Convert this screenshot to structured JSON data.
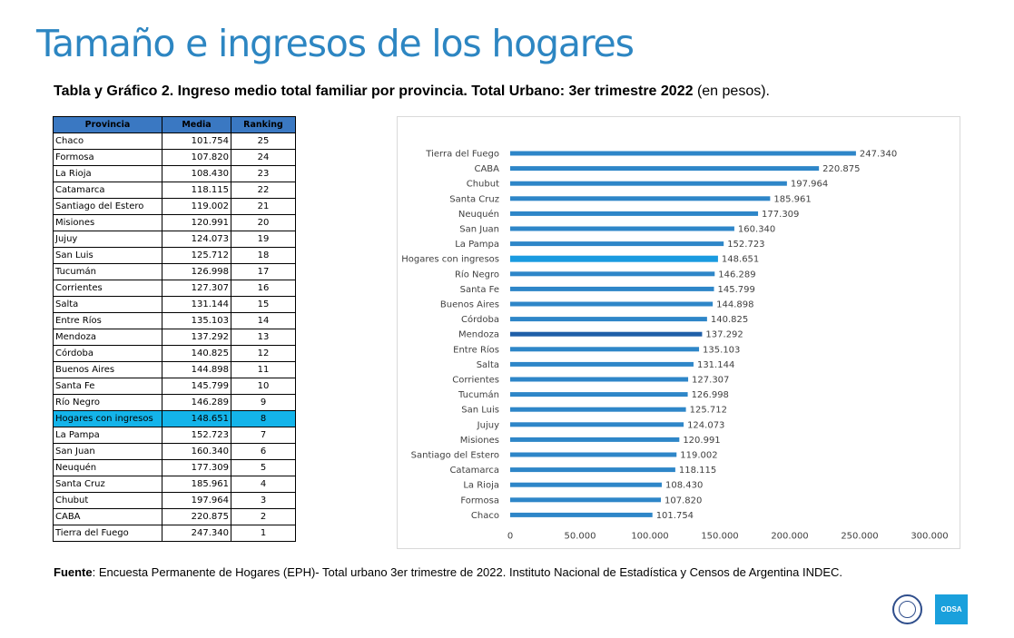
{
  "page": {
    "title": "Tamaño e ingresos de los hogares",
    "subtitle_bold": "Tabla y Gráfico 2. Ingreso medio total familiar por provincia. Total Urbano: 3er trimestre 2022",
    "subtitle_normal": "(en pesos).",
    "source_label": "Fuente",
    "source_text": ": Encuesta Permanente de Hogares (EPH)- Total urbano 3er trimestre de 2022. Instituto Nacional de Estadística y Censos de Argentina INDEC.",
    "logo_text": "ODSA"
  },
  "table": {
    "headers": [
      "Provincia",
      "Media",
      "Ranking"
    ],
    "rows": [
      {
        "provincia": "Chaco",
        "media": "101.754",
        "ranking": "25"
      },
      {
        "provincia": "Formosa",
        "media": "107.820",
        "ranking": "24"
      },
      {
        "provincia": "La Rioja",
        "media": "108.430",
        "ranking": "23"
      },
      {
        "provincia": "Catamarca",
        "media": "118.115",
        "ranking": "22"
      },
      {
        "provincia": "Santiago del Estero",
        "media": "119.002",
        "ranking": "21"
      },
      {
        "provincia": "Misiones",
        "media": "120.991",
        "ranking": "20"
      },
      {
        "provincia": "Jujuy",
        "media": "124.073",
        "ranking": "19"
      },
      {
        "provincia": "San Luis",
        "media": "125.712",
        "ranking": "18"
      },
      {
        "provincia": "Tucumán",
        "media": "126.998",
        "ranking": "17"
      },
      {
        "provincia": "Corrientes",
        "media": "127.307",
        "ranking": "16"
      },
      {
        "provincia": "Salta",
        "media": "131.144",
        "ranking": "15"
      },
      {
        "provincia": "Entre Ríos",
        "media": "135.103",
        "ranking": "14"
      },
      {
        "provincia": "Mendoza",
        "media": "137.292",
        "ranking": "13"
      },
      {
        "provincia": "Córdoba",
        "media": "140.825",
        "ranking": "12"
      },
      {
        "provincia": "Buenos Aires",
        "media": "144.898",
        "ranking": "11"
      },
      {
        "provincia": "Santa Fe",
        "media": "145.799",
        "ranking": "10"
      },
      {
        "provincia": "Río Negro",
        "media": "146.289",
        "ranking": "9"
      },
      {
        "provincia": "Hogares con ingresos",
        "media": "148.651",
        "ranking": "8",
        "highlight": true
      },
      {
        "provincia": "La Pampa",
        "media": "152.723",
        "ranking": "7"
      },
      {
        "provincia": "San Juan",
        "media": "160.340",
        "ranking": "6"
      },
      {
        "provincia": "Neuquén",
        "media": "177.309",
        "ranking": "5"
      },
      {
        "provincia": "Santa Cruz",
        "media": "185.961",
        "ranking": "4"
      },
      {
        "provincia": "Chubut",
        "media": "197.964",
        "ranking": "3"
      },
      {
        "provincia": "CABA",
        "media": "220.875",
        "ranking": "2"
      },
      {
        "provincia": "Tierra del Fuego",
        "media": "247.340",
        "ranking": "1"
      }
    ]
  },
  "chart_data": {
    "type": "bar",
    "orientation": "horizontal",
    "title": "",
    "xlabel": "",
    "ylabel": "",
    "xlim": [
      0,
      300000
    ],
    "x_ticks": [
      0,
      50000,
      100000,
      150000,
      200000,
      250000,
      300000
    ],
    "x_tick_labels": [
      "0",
      "50.000",
      "100.000",
      "150.000",
      "200.000",
      "250.000",
      "300.000"
    ],
    "grid": false,
    "categories": [
      "Tierra del Fuego",
      "CABA",
      "Chubut",
      "Santa Cruz",
      "Neuquén",
      "San Juan",
      "La Pampa",
      "Hogares con ingresos",
      "Río Negro",
      "Santa Fe",
      "Buenos Aires",
      "Córdoba",
      "Mendoza",
      "Entre Ríos",
      "Salta",
      "Corrientes",
      "Tucumán",
      "San Luis",
      "Jujuy",
      "Misiones",
      "Santiago del Estero",
      "Catamarca",
      "La Rioja",
      "Formosa",
      "Chaco"
    ],
    "values": [
      247340,
      220875,
      197964,
      185961,
      177309,
      160340,
      152723,
      148651,
      146289,
      145799,
      144898,
      140825,
      137292,
      135103,
      131144,
      127307,
      126998,
      125712,
      124073,
      120991,
      119002,
      118115,
      108430,
      107820,
      101754
    ],
    "value_labels": [
      "247.340",
      "220.875",
      "197.964",
      "185.961",
      "177.309",
      "160.340",
      "152.723",
      "148.651",
      "146.289",
      "145.799",
      "144.898",
      "140.825",
      "137.292",
      "135.103",
      "131.144",
      "127.307",
      "126.998",
      "125.712",
      "124.073",
      "120.991",
      "119.002",
      "118.115",
      "108.430",
      "107.820",
      "101.754"
    ],
    "bar_color": "#2e86c8",
    "highlight_color": "#1a9be0",
    "highlight_category": "Hogares con ingresos",
    "emphasis_category": "Mendoza",
    "emphasis_color": "#1f5fa8"
  }
}
